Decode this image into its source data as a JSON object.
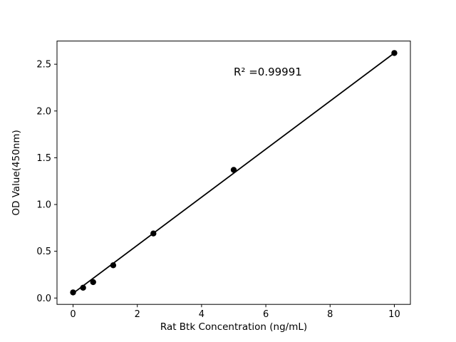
{
  "figure": {
    "background": "#ffffff",
    "text_color": "#000000"
  },
  "chart_data": {
    "type": "scatter",
    "title": "",
    "xlabel": "Rat Btk Concentration (ng/mL)",
    "ylabel": "OD Value(450nm)",
    "x": [
      0,
      0.3125,
      0.625,
      1.25,
      2.5,
      5,
      10
    ],
    "y": [
      0.06,
      0.11,
      0.17,
      0.35,
      0.69,
      1.37,
      2.62
    ],
    "fit_line": {
      "x": [
        0,
        10
      ],
      "y": [
        0.05,
        2.62
      ]
    },
    "xlim": [
      -0.5,
      10.5
    ],
    "ylim": [
      -0.068,
      2.748
    ],
    "xticks": [
      0,
      2,
      4,
      6,
      8,
      10
    ],
    "xtick_labels": [
      "0",
      "2",
      "4",
      "6",
      "8",
      "10"
    ],
    "yticks": [
      0.0,
      0.5,
      1.0,
      1.5,
      2.0,
      2.5
    ],
    "ytick_labels": [
      "0.0",
      "0.5",
      "1.0",
      "1.5",
      "2.0",
      "2.5"
    ],
    "annotation": {
      "text": "R² =0.99991",
      "x": 5.0,
      "y": 2.38
    },
    "marker_color": "#000000",
    "line_color": "#000000",
    "axis_color": "#000000",
    "grid": false,
    "legend": null
  }
}
